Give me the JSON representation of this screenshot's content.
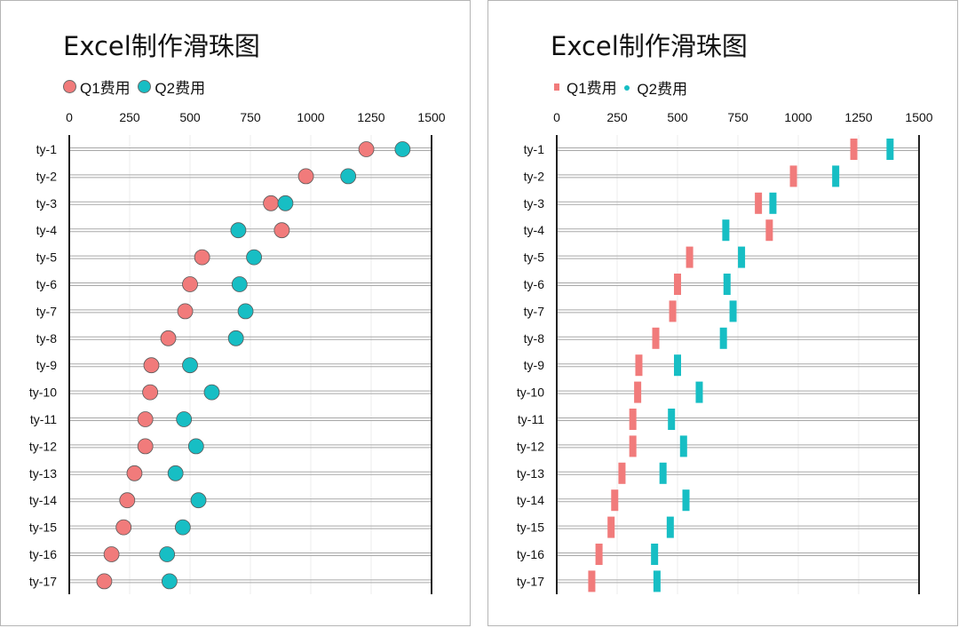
{
  "colors": {
    "q1": "#f17b7b",
    "q2": "#17bec4"
  },
  "chart_data": [
    {
      "type": "scatter",
      "marker": "circle",
      "title": "Excel制作滑珠图",
      "legend": [
        "Q1费用",
        "Q2费用"
      ],
      "legend_position": "top-left",
      "x_axis_position": "top",
      "xlim": [
        0,
        1500
      ],
      "xticks": [
        "0",
        "250",
        "500",
        "750",
        "1000",
        "1250",
        "1500"
      ],
      "grid": "horizontal",
      "categories": [
        "ty-1",
        "ty-2",
        "ty-3",
        "ty-4",
        "ty-5",
        "ty-6",
        "ty-7",
        "ty-8",
        "ty-9",
        "ty-10",
        "ty-11",
        "ty-12",
        "ty-13",
        "ty-14",
        "ty-15",
        "ty-16",
        "ty-17"
      ],
      "series": [
        {
          "name": "Q1费用",
          "values": [
            1230,
            980,
            835,
            880,
            550,
            500,
            480,
            410,
            340,
            335,
            315,
            315,
            270,
            240,
            225,
            175,
            145
          ]
        },
        {
          "name": "Q2费用",
          "values": [
            1380,
            1155,
            895,
            700,
            765,
            705,
            730,
            690,
            500,
            590,
            475,
            525,
            440,
            535,
            470,
            405,
            415
          ]
        }
      ]
    },
    {
      "type": "scatter",
      "marker": "bar",
      "title": "Excel制作滑珠图",
      "legend": [
        "Q1费用",
        "Q2费用"
      ],
      "legend_position": "top-left",
      "x_axis_position": "top",
      "xlim": [
        0,
        1500
      ],
      "xticks": [
        "0",
        "250",
        "500",
        "750",
        "1000",
        "1250",
        "1500"
      ],
      "grid": "horizontal",
      "categories": [
        "ty-1",
        "ty-2",
        "ty-3",
        "ty-4",
        "ty-5",
        "ty-6",
        "ty-7",
        "ty-8",
        "ty-9",
        "ty-10",
        "ty-11",
        "ty-12",
        "ty-13",
        "ty-14",
        "ty-15",
        "ty-16",
        "ty-17"
      ],
      "series": [
        {
          "name": "Q1费用",
          "values": [
            1230,
            980,
            835,
            880,
            550,
            500,
            480,
            410,
            340,
            335,
            315,
            315,
            270,
            240,
            225,
            175,
            145
          ]
        },
        {
          "name": "Q2费用",
          "values": [
            1380,
            1155,
            895,
            700,
            765,
            705,
            730,
            690,
            500,
            590,
            475,
            525,
            440,
            535,
            470,
            405,
            415
          ]
        }
      ]
    }
  ]
}
